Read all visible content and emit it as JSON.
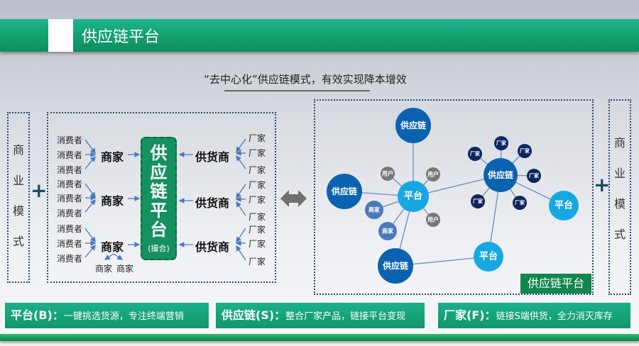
{
  "header": {
    "title": "供应链平台",
    "subtitle": "“去中心化”供应链模式，有效实现降本增效"
  },
  "side_label": [
    "商",
    "业",
    "模",
    "式"
  ],
  "plus": "+",
  "left_diagram": {
    "consumer": "消费者",
    "merchant": "商家",
    "supplier": "供货商",
    "factory": "厂家",
    "platform": [
      "供",
      "应",
      "链",
      "平",
      "台"
    ],
    "platform_note": "(撮合)",
    "sub_merchants": [
      "商家",
      "商家"
    ]
  },
  "network": {
    "supply_chain": "供应链",
    "platform": "平台",
    "user": "用户",
    "merchant": "商家",
    "factory": "厂家",
    "label": "供应链平台"
  },
  "cards": [
    {
      "key": "平台(B)：",
      "text": "一键挑选货源，专注终端营销"
    },
    {
      "key": "供应链(S)：",
      "text": "整合厂家产品，链接平台变现"
    },
    {
      "key": "厂家(F)：",
      "text": "链接S端供货，全力消灭库存"
    }
  ],
  "colors": {
    "green": "#12966a",
    "blue_dark": "#0b62b0",
    "blue_light": "#17a8e3",
    "navy": "#0d2660",
    "grey": "#777777",
    "merchant_blue": "#4a7bb8"
  }
}
